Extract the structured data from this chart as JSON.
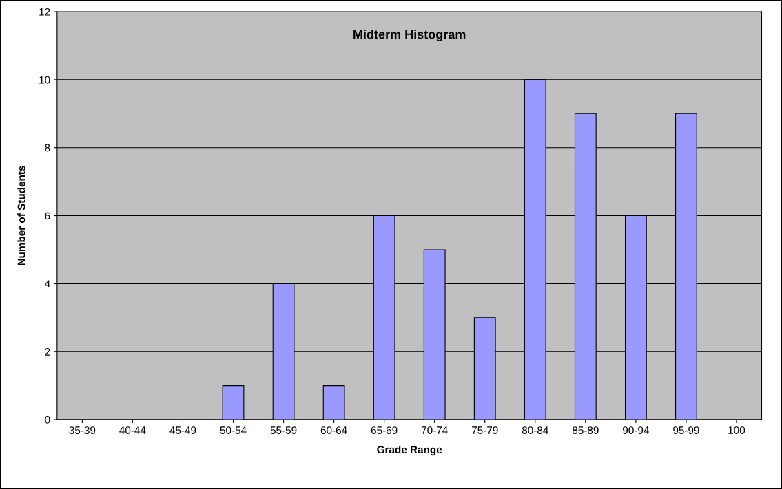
{
  "chart_data": {
    "type": "bar",
    "title": "Midterm Histogram",
    "xlabel": "Grade Range",
    "ylabel": "Number of Students",
    "categories": [
      "35-39",
      "40-44",
      "45-49",
      "50-54",
      "55-59",
      "60-64",
      "65-69",
      "70-74",
      "75-79",
      "80-84",
      "85-89",
      "90-94",
      "95-99",
      "100"
    ],
    "values": [
      0,
      0,
      0,
      1,
      4,
      1,
      6,
      5,
      3,
      10,
      9,
      6,
      9,
      0
    ],
    "color": "#9999ff",
    "ylim": [
      0,
      12
    ],
    "yticks": [
      0,
      2,
      4,
      6,
      8,
      10,
      12
    ],
    "grid": "y",
    "legend": false
  }
}
